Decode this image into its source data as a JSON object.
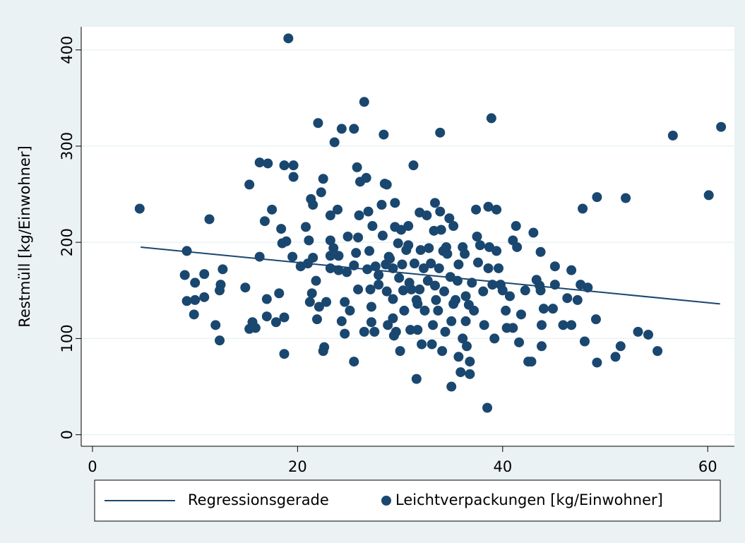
{
  "chart_data": {
    "type": "scatter",
    "ylabel": "Restmüll [kg/Einwohner]",
    "xlim": [
      -1.1,
      62.6
    ],
    "ylim": [
      -12,
      424
    ],
    "xticks": [
      0,
      20,
      40,
      60
    ],
    "yticks": [
      0,
      100,
      200,
      300,
      400
    ],
    "grid": true,
    "legend": "bottom",
    "series": [
      {
        "name": "Regressionsgerade",
        "type": "line",
        "color": "#1a476f",
        "x": [
          4.7,
          61.2
        ],
        "values": [
          195,
          136
        ]
      },
      {
        "name": "Leichtverpackungen [kg/Einwohner]",
        "type": "scatter",
        "color": "#1a476f",
        "x": [
          4.6,
          9.2,
          9.0,
          9.2,
          9.9,
          10.0,
          10.0,
          10.9,
          10.9,
          11.4,
          12.0,
          12.4,
          12.4,
          12.5,
          12.7,
          14.9,
          15.3,
          15.3,
          15.6,
          15.9,
          16.3,
          16.3,
          17.1,
          16.8,
          17.0,
          17.0,
          17.5,
          17.9,
          18.2,
          18.4,
          18.5,
          18.9,
          18.7,
          18.7,
          18.7,
          19.6,
          19.1,
          19.6,
          19.5,
          20.3,
          20.8,
          21.0,
          21.1,
          21.3,
          21.5,
          21.5,
          21.2,
          21.4,
          21.8,
          22.0,
          21.9,
          22.1,
          22.3,
          22.5,
          22.6,
          22.5,
          22.8,
          23.2,
          23.2,
          23.2,
          23.5,
          23.2,
          23.6,
          23.9,
          24.0,
          24.3,
          24.0,
          24.3,
          24.6,
          24.6,
          24.8,
          24.9,
          25.1,
          25.5,
          25.5,
          25.5,
          25.7,
          25.8,
          25.9,
          26.0,
          25.9,
          26.1,
          26.5,
          26.5,
          26.7,
          26.8,
          26.9,
          27.0,
          27.1,
          27.2,
          27.2,
          27.3,
          27.5,
          27.6,
          27.9,
          27.9,
          28.2,
          28.3,
          28.4,
          28.6,
          28.5,
          28.7,
          28.7,
          28.8,
          28.9,
          29.0,
          29.3,
          29.3,
          29.3,
          29.4,
          29.5,
          29.6,
          29.5,
          29.8,
          29.9,
          30.0,
          30.1,
          30.2,
          30.3,
          30.4,
          30.6,
          30.8,
          30.8,
          30.9,
          31.0,
          31.1,
          31.3,
          31.4,
          31.6,
          31.6,
          31.7,
          31.7,
          31.9,
          31.9,
          32.0,
          32.1,
          32.3,
          32.4,
          32.6,
          32.7,
          32.8,
          33.0,
          33.1,
          33.2,
          33.3,
          33.4,
          33.4,
          33.5,
          33.7,
          33.8,
          33.9,
          33.9,
          34.0,
          34.1,
          34.2,
          34.3,
          34.4,
          34.5,
          34.6,
          34.8,
          34.9,
          35.0,
          35.0,
          35.2,
          35.2,
          35.4,
          35.6,
          35.7,
          35.7,
          35.9,
          36.1,
          36.1,
          36.3,
          36.4,
          36.4,
          36.5,
          36.7,
          36.8,
          36.8,
          37.0,
          37.2,
          37.4,
          37.5,
          37.6,
          37.8,
          38.1,
          38.2,
          38.5,
          38.6,
          38.6,
          38.7,
          38.9,
          39.0,
          39.2,
          39.4,
          39.4,
          39.6,
          39.8,
          40.0,
          40.3,
          40.4,
          40.7,
          41.0,
          41.0,
          41.3,
          41.4,
          41.6,
          41.8,
          42.2,
          42.5,
          42.8,
          43.0,
          43.3,
          43.6,
          43.7,
          43.7,
          43.8,
          43.8,
          44.0,
          44.9,
          45.1,
          45.1,
          45.9,
          46.3,
          46.7,
          46.7,
          47.3,
          47.6,
          47.8,
          48.0,
          48.3,
          49.2,
          49.1,
          49.2,
          51.0,
          51.5,
          52.0,
          53.2,
          54.2,
          55.1,
          56.6,
          60.1,
          61.3
        ],
        "values": [
          235,
          191,
          166,
          139,
          125,
          158,
          140,
          167,
          143,
          224,
          114,
          98,
          150,
          156,
          172,
          153,
          260,
          110,
          117,
          111,
          185,
          283,
          282,
          222,
          141,
          123,
          234,
          117,
          147,
          214,
          199,
          201,
          122,
          84,
          280,
          280,
          412,
          268,
          185,
          175,
          216,
          178,
          202,
          245,
          239,
          184,
          138,
          147,
          160,
          324,
          120,
          133,
          252,
          266,
          91,
          87,
          138,
          202,
          228,
          186,
          194,
          173,
          304,
          234,
          186,
          318,
          171,
          118,
          105,
          138,
          169,
          206,
          129,
          176,
          318,
          76,
          189,
          278,
          205,
          228,
          151,
          263,
          346,
          107,
          267,
          172,
          232,
          191,
          151,
          133,
          117,
          217,
          107,
          175,
          156,
          166,
          239,
          207,
          312,
          177,
          261,
          260,
          149,
          114,
          185,
          183,
          173,
          121,
          141,
          103,
          241,
          107,
          216,
          199,
          163,
          87,
          213,
          177,
          150,
          129,
          192,
          217,
          197,
          158,
          109,
          151,
          280,
          178,
          140,
          58,
          136,
          109,
          231,
          151,
          192,
          94,
          173,
          129,
          228,
          160,
          194,
          178,
          94,
          114,
          212,
          241,
          155,
          140,
          129,
          173,
          314,
          232,
          213,
          87,
          191,
          149,
          107,
          195,
          188,
          225,
          164,
          50,
          118,
          136,
          217,
          140,
          160,
          177,
          81,
          65,
          195,
          100,
          188,
          118,
          144,
          92,
          135,
          76,
          63,
          158,
          129,
          234,
          206,
          179,
          197,
          149,
          114,
          28,
          237,
          173,
          195,
          329,
          156,
          100,
          234,
          191,
          173,
          156,
          150,
          129,
          111,
          144,
          202,
          111,
          217,
          195,
          96,
          125,
          150,
          76,
          76,
          210,
          161,
          155,
          190,
          150,
          92,
          114,
          131,
          131,
          156,
          175,
          114,
          142,
          171,
          114,
          140,
          156,
          235,
          97,
          153,
          247,
          120,
          75,
          81,
          92,
          246,
          107,
          104,
          87,
          311,
          249,
          320
        ]
      }
    ]
  }
}
